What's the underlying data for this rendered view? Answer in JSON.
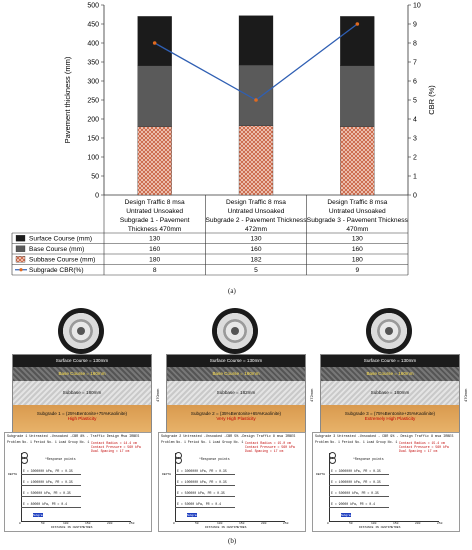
{
  "chart_data": {
    "type": "bar",
    "stacked": true,
    "categories": [
      [
        "Design Traffic 8 msa",
        "Untrated Unsoaked",
        "Subgrade  1 - Pavement",
        "Thickness 470mm"
      ],
      [
        "Design Traffic 8 msa",
        "Untrated Unsoaked",
        "Subgrade 2 - Pavement Thickness",
        "472mm"
      ],
      [
        "Design Traffic 8 msa",
        "Untrated Unsoaked",
        "Subgrade 3 - Pavement Thickness",
        "470mm"
      ]
    ],
    "series": [
      {
        "name": "Surface Course (mm)",
        "values": [
          130,
          130,
          130
        ],
        "color": "#1b1b1b"
      },
      {
        "name": "Base Course (mm)",
        "values": [
          160,
          160,
          160
        ],
        "color": "#5a5a5a"
      },
      {
        "name": "Subbase Course (mm)",
        "values": [
          180,
          182,
          180
        ],
        "color": "#e07a5a"
      }
    ],
    "line_series": {
      "name": "Subgrade CBR(%)",
      "values": [
        8,
        5,
        9
      ],
      "color": "#2f5fb3"
    },
    "ylabel": "Pavement thickness (mm)",
    "y2label": "CBR (%)",
    "ylim": [
      0,
      500
    ],
    "y2lim": [
      0,
      10
    ],
    "yticks": [
      "0",
      "50",
      "100",
      "150",
      "200",
      "250",
      "300",
      "350",
      "400",
      "450",
      "500"
    ],
    "y2ticks": [
      "0",
      "1",
      "2",
      "3",
      "4",
      "5",
      "6",
      "7",
      "8",
      "9",
      "10"
    ],
    "grid": false
  },
  "panel_a_label": "(a)",
  "panel_b_label": "(b)",
  "sections": [
    {
      "surface": "Surface Course = 130mm",
      "base": "Base Course = 160mm",
      "subbase": "Subbase = 180mm",
      "subgrade": "Subgrade 1 = (25%Bentonite+75%Kaolinite)",
      "plasticity": "High Plasticity",
      "thickness": "470mm"
    },
    {
      "surface": "Surface Course = 130mm",
      "base": "Base Course = 160mm",
      "subbase": "Subbase = 182mm",
      "subgrade": "Subgrade 2 = (35%Bentonite+65%Kaolinite)",
      "plasticity": "Very High Plasticity",
      "thickness": "472mm"
    },
    {
      "surface": "Surface Course = 130mm",
      "base": "Base Course = 160mm",
      "subbase": "Subbase = 180mm",
      "subgrade": "Subgrade 3 = (75%Bentonite+25%Kaolinite)",
      "plasticity": "Extremely High Plasticity",
      "thickness": "470mm"
    }
  ],
  "outputs": [
    {
      "header": "Subgrade 1 Untreated -Unsoaked -CBR 8% - Traffic Design Msa IRBES",
      "problem": "Problem No. 1   Period No. 1   Load Group No. 1",
      "red": [
        "Contact Radius = 14.4 cm",
        "Contact Pressure = 560 kPa",
        "Dual Spacing = 17 cm"
      ],
      "resp": "*Response points",
      "layers": [
        "E = 3000000 kPa, PR = 0.35",
        "E = 1000000 kPa, PR = 0.35",
        "E = 500000 kPa, PR = 0.35",
        "E = 80000 kPa, PR = 0.4"
      ],
      "xticks": [
        "0",
        "50",
        "100",
        "150",
        "200",
        "250"
      ],
      "xlabel": "DISTANCE IN CENTIMETRES",
      "ylabel": "DEPTH",
      "subgrade_tag": "Subgrade"
    },
    {
      "header": "Subgrade 2 Untreated -Unsoaked -CBR 5% -Design Traffic 8 msa IRBES",
      "problem": "Problem No. 1   Period No. 1   Load Group No. 1",
      "red": [
        "Contact Radius = 15.0 cm",
        "Contact Pressure = 560 kPa",
        "Dual Spacing = 17 cm"
      ],
      "resp": "*Response points",
      "layers": [
        "E = 3000000 kPa, PR = 0.35",
        "E = 1000000 kPa, PR = 0.35",
        "E = 500000 kPa, PR = 0.35",
        "E = 50000 kPa, PR = 0.4"
      ],
      "xticks": [
        "0",
        "50",
        "100",
        "150",
        "200",
        "250"
      ],
      "xlabel": "DISTANCE IN CENTIMETRES",
      "ylabel": "DEPTH",
      "subgrade_tag": "Subgrade"
    },
    {
      "header": "Subgrade 3 Untreated -Unsoaked - CBR 9% - Design Traffic 8 msa IRBES",
      "problem": "Problem No. 1   Period No. 1   Load Group No. 1",
      "red": [
        "Contact Radius = 15.4 cm",
        "Contact Pressure = 560 kPa",
        "Dual Spacing = 17 cm"
      ],
      "resp": "*Response points",
      "layers": [
        "E = 3000000 kPa, PR = 0.35",
        "E = 1000000 kPa, PR = 0.35",
        "E = 500000 kPa, PR = 0.35",
        "E = 90000 kPa, PR = 0.4"
      ],
      "xticks": [
        "0",
        "50",
        "100",
        "150",
        "200",
        "250"
      ],
      "xlabel": "DISTANCE IN CENTIMETRES",
      "ylabel": "DEPTH",
      "subgrade_tag": "Subgrade"
    }
  ]
}
